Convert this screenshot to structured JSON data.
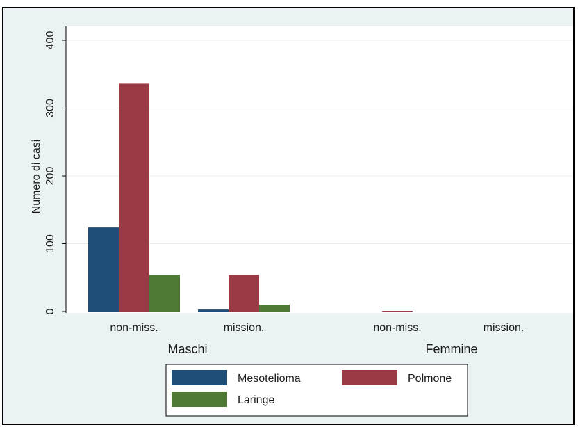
{
  "chart_data": {
    "type": "bar",
    "ylabel": "Numero di casi",
    "ylim": [
      0,
      420
    ],
    "yticks": [
      0,
      100,
      200,
      300,
      400
    ],
    "grid": true,
    "legend_position": "bottom",
    "groups": [
      {
        "label": "Maschi",
        "categories": [
          "non-miss.",
          "mission."
        ]
      },
      {
        "label": "Femmine",
        "categories": [
          "non-miss.",
          "mission."
        ]
      }
    ],
    "categories": [
      "non-miss.",
      "mission.",
      "non-miss.",
      "mission."
    ],
    "series": [
      {
        "name": "Mesotelioma",
        "color": "#1f4e79",
        "values": [
          124,
          3,
          0,
          0
        ]
      },
      {
        "name": "Polmone",
        "color": "#9b3a45",
        "values": [
          336,
          54,
          1,
          0
        ]
      },
      {
        "name": "Laringe",
        "color": "#4e7a35",
        "values": [
          54,
          10,
          0,
          0
        ]
      }
    ]
  }
}
